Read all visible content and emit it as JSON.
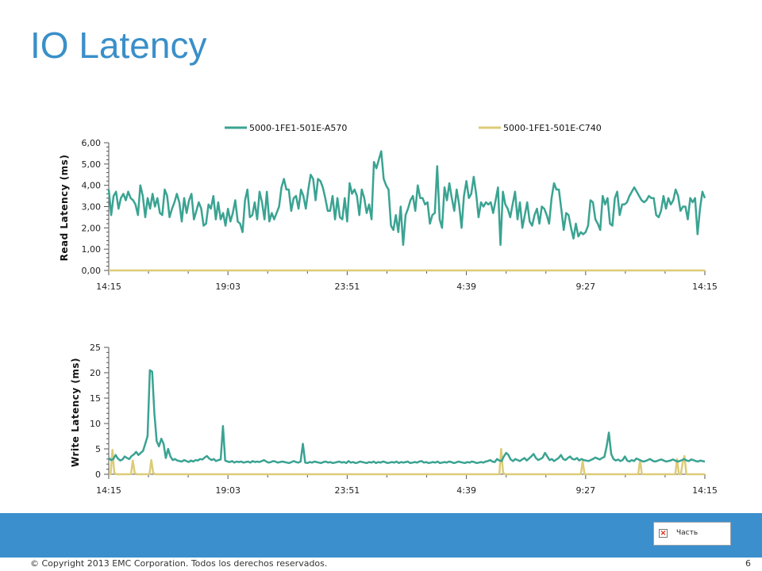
{
  "slide": {
    "title": "IO Latency",
    "copyright": "© Copyright 2013 EMC Corporation. Todos los derechos reservados.",
    "page_number": "6",
    "placeholder_label": "Часть"
  },
  "colors": {
    "series1": "#3aa392",
    "series2": "#dccb78",
    "title": "#3a8fc9",
    "footer": "#3b8fcd"
  },
  "chart_data": [
    {
      "type": "line",
      "legend_position": "top",
      "ylabel": "Read Latency (ms)",
      "ylim": [
        0,
        6
      ],
      "y_tick_labels": [
        "0,00",
        "1,00",
        "2,00",
        "3,00",
        "4,00",
        "5,00",
        "6,00"
      ],
      "x_tick_labels": [
        "14:15",
        "19:03",
        "23:51",
        "4:39",
        "9:27",
        "14:15"
      ],
      "series": [
        {
          "name": "5000-1FE1-501E-A570",
          "values": [
            3.8,
            2.6,
            3.5,
            3.7,
            2.9,
            3.4,
            3.6,
            3.3,
            3.7,
            3.4,
            3.3,
            3.1,
            2.6,
            4.0,
            3.5,
            2.5,
            3.4,
            2.9,
            3.6,
            3.0,
            3.4,
            2.7,
            2.6,
            3.8,
            3.5,
            2.5,
            2.9,
            3.2,
            3.6,
            3.2,
            2.3,
            3.4,
            2.7,
            3.3,
            3.6,
            2.4,
            2.8,
            3.2,
            2.9,
            2.1,
            2.2,
            3.1,
            2.9,
            3.5,
            2.4,
            3.2,
            2.4,
            2.7,
            2.1,
            2.9,
            2.3,
            2.7,
            3.3,
            2.3,
            2.2,
            1.8,
            3.3,
            3.8,
            2.5,
            2.6,
            3.2,
            2.4,
            3.7,
            3.2,
            2.4,
            3.7,
            2.3,
            2.7,
            2.4,
            2.7,
            3.0,
            3.9,
            4.3,
            3.8,
            3.8,
            2.8,
            3.4,
            3.5,
            2.9,
            3.8,
            3.5,
            2.9,
            3.8,
            4.5,
            4.3,
            3.3,
            4.3,
            4.2,
            3.9,
            3.4,
            2.8,
            2.8,
            3.5,
            2.4,
            3.4,
            2.5,
            2.4,
            3.4,
            2.3,
            4.1,
            3.6,
            3.8,
            3.5,
            2.6,
            3.8,
            3.4,
            2.7,
            3.1,
            2.4,
            5.1,
            4.8,
            5.2,
            5.6,
            4.3,
            4.0,
            3.8,
            2.1,
            1.9,
            2.6,
            1.8,
            3.0,
            1.2,
            2.6,
            2.9,
            3.3,
            3.5,
            2.8,
            4.0,
            3.4,
            3.4,
            3.1,
            3.2,
            2.2,
            2.6,
            2.7,
            4.9,
            2.4,
            2.0,
            3.9,
            3.3,
            4.1,
            3.4,
            2.8,
            3.8,
            3.1,
            2.0,
            3.5,
            4.2,
            3.4,
            3.6,
            4.4,
            3.6,
            2.5,
            3.2,
            3.0,
            3.2,
            3.1,
            3.2,
            2.7,
            3.3,
            3.9,
            1.2,
            3.7,
            3.1,
            2.9,
            2.5,
            3.1,
            3.7,
            2.4,
            3.2,
            2.0,
            2.6,
            3.2,
            2.3,
            2.1,
            2.6,
            2.9,
            2.2,
            3.0,
            2.9,
            2.6,
            2.2,
            3.4,
            4.1,
            3.8,
            3.8,
            2.9,
            1.9,
            2.7,
            2.6,
            2.0,
            1.5,
            2.2,
            1.6,
            1.8,
            1.7,
            1.8,
            2.1,
            3.3,
            3.2,
            2.4,
            2.2,
            1.9,
            3.5,
            3.1,
            3.4,
            2.2,
            2.1,
            3.4,
            3.7,
            2.6,
            3.1,
            3.1,
            3.2,
            3.5,
            3.7,
            3.9,
            3.7,
            3.5,
            3.3,
            3.2,
            3.3,
            3.5,
            3.4,
            3.4,
            2.6,
            2.5,
            2.8,
            3.5,
            2.9,
            3.4,
            3.1,
            3.3,
            3.8,
            3.5,
            2.8,
            3.0,
            3.0,
            2.4,
            3.4,
            3.2,
            3.4,
            1.7,
            2.9,
            3.7,
            3.4
          ]
        },
        {
          "name": "5000-1FE1-501E-C740",
          "values": [
            0,
            0
          ]
        }
      ]
    },
    {
      "type": "line",
      "ylabel": "Write Latency (ms)",
      "ylim": [
        0,
        25
      ],
      "y_tick_labels": [
        "0",
        "5",
        "10",
        "15",
        "20",
        "25"
      ],
      "x_tick_labels": [
        "14:15",
        "19:03",
        "23:51",
        "4:39",
        "9:27",
        "14:15"
      ],
      "series": [
        {
          "name": "5000-1FE1-501E-A570",
          "values": [
            3.2,
            2.8,
            3.0,
            3.8,
            3.1,
            2.7,
            2.9,
            3.5,
            3.2,
            3.0,
            3.6,
            3.9,
            4.4,
            3.8,
            4.2,
            4.6,
            6.0,
            7.5,
            20.5,
            20.2,
            12.0,
            6.5,
            5.5,
            7.0,
            6.0,
            3.2,
            5.0,
            3.5,
            2.8,
            3.0,
            2.7,
            2.6,
            2.5,
            2.8,
            2.6,
            2.4,
            2.7,
            2.5,
            2.8,
            2.7,
            3.0,
            2.9,
            3.3,
            3.6,
            3.1,
            2.8,
            3.0,
            2.6,
            2.8,
            2.9,
            9.5,
            2.7,
            2.5,
            2.4,
            2.6,
            2.3,
            2.5,
            2.4,
            2.5,
            2.3,
            2.4,
            2.5,
            2.3,
            2.6,
            2.4,
            2.5,
            2.4,
            2.6,
            2.8,
            2.5,
            2.3,
            2.4,
            2.6,
            2.5,
            2.3,
            2.4,
            2.5,
            2.4,
            2.3,
            2.2,
            2.4,
            2.6,
            2.4,
            2.3,
            2.5,
            6.0,
            2.3,
            2.2,
            2.4,
            2.3,
            2.5,
            2.4,
            2.3,
            2.2,
            2.4,
            2.5,
            2.3,
            2.4,
            2.2,
            2.3,
            2.4,
            2.5,
            2.3,
            2.4,
            2.2,
            2.6,
            2.3,
            2.4,
            2.2,
            2.3,
            2.5,
            2.4,
            2.3,
            2.2,
            2.4,
            2.3,
            2.5,
            2.2,
            2.4,
            2.3,
            2.5,
            2.4,
            2.2,
            2.3,
            2.4,
            2.3,
            2.5,
            2.2,
            2.4,
            2.3,
            2.4,
            2.5,
            2.2,
            2.3,
            2.4,
            2.3,
            2.5,
            2.6,
            2.3,
            2.4,
            2.2,
            2.3,
            2.4,
            2.3,
            2.5,
            2.2,
            2.3,
            2.4,
            2.3,
            2.5,
            2.4,
            2.2,
            2.3,
            2.5,
            2.4,
            2.3,
            2.2,
            2.4,
            2.3,
            2.5,
            2.4,
            2.2,
            2.3,
            2.4,
            2.3,
            2.5,
            2.6,
            2.8,
            2.5,
            2.4,
            3.0,
            2.7,
            2.6,
            3.5,
            4.2,
            3.8,
            2.9,
            2.6,
            3.0,
            2.8,
            2.6,
            2.9,
            3.2,
            2.7,
            3.1,
            3.5,
            4.0,
            3.2,
            2.8,
            3.0,
            3.3,
            4.2,
            3.5,
            2.8,
            3.0,
            2.6,
            2.9,
            3.2,
            3.8,
            3.0,
            2.8,
            3.2,
            3.5,
            3.0,
            2.9,
            3.2,
            2.7,
            3.0,
            2.8,
            2.7,
            2.6,
            2.8,
            3.0,
            3.3,
            3.1,
            2.9,
            3.2,
            3.4,
            5.5,
            8.2,
            4.0,
            3.0,
            2.7,
            2.9,
            2.6,
            2.8,
            3.5,
            2.7,
            2.5,
            2.8,
            2.6,
            3.1,
            2.9,
            2.7,
            2.5,
            2.6,
            2.8,
            3.0,
            2.7,
            2.5,
            2.6,
            2.8,
            2.9,
            2.7,
            2.5,
            2.6,
            2.7,
            2.9,
            2.7,
            2.5,
            2.6,
            2.8,
            3.0,
            2.7,
            2.6,
            2.9,
            2.8,
            2.6,
            2.5,
            2.7,
            2.6,
            2.5
          ]
        },
        {
          "name": "5000-1FE1-501E-C740",
          "values": [
            0,
            0,
            4.8,
            0.3,
            0,
            0,
            0,
            0,
            0,
            0,
            0,
            0,
            0,
            2.7,
            0.3,
            0,
            0,
            0,
            0,
            0,
            0,
            0,
            0,
            2.8,
            0.3,
            0,
            0,
            0,
            0,
            0,
            0,
            0,
            0,
            0,
            0,
            0,
            0,
            0,
            0,
            0,
            0,
            0,
            0,
            0,
            0,
            0,
            0,
            0,
            0,
            0,
            0,
            0,
            0,
            0,
            0,
            0,
            0,
            0,
            0,
            0,
            0,
            0,
            0,
            0,
            0,
            0,
            0,
            0,
            0,
            0,
            0,
            0,
            0,
            0,
            0,
            0,
            0,
            0,
            0,
            0,
            0,
            0,
            0,
            0,
            0,
            0,
            0,
            0,
            0,
            0,
            0,
            0,
            0,
            0,
            0,
            0,
            0,
            0,
            0,
            0,
            0,
            0,
            0,
            0,
            0,
            0,
            0,
            0,
            0,
            0,
            0,
            0,
            0,
            0,
            0,
            0,
            0,
            0,
            0,
            0,
            0,
            0,
            0,
            0,
            0,
            0,
            0,
            0,
            0,
            0,
            0,
            0,
            0,
            0,
            0,
            0,
            0,
            0,
            0,
            0,
            0,
            0,
            0,
            0,
            0,
            0,
            0,
            0,
            0,
            0,
            0,
            0,
            0,
            0,
            0,
            0,
            0,
            0,
            0,
            0,
            0,
            0,
            0,
            0,
            0,
            0,
            0,
            0,
            0,
            0,
            0,
            0,
            0,
            0,
            0,
            0,
            0,
            0,
            0,
            0,
            0,
            0,
            0,
            0,
            0,
            0,
            0,
            0,
            0,
            0,
            0,
            0,
            0,
            0,
            0,
            0,
            0,
            0,
            0,
            0,
            0,
            0,
            0,
            0,
            0,
            0,
            0,
            0,
            0,
            0,
            0,
            0,
            5.0,
            0.3,
            0,
            0,
            0,
            0,
            0,
            0,
            0,
            0,
            0,
            0,
            0,
            0,
            0,
            0,
            0,
            0,
            0,
            0,
            0,
            0,
            0,
            0,
            0,
            0,
            0,
            0,
            0,
            0,
            0,
            0,
            0,
            0,
            0,
            0,
            0,
            0,
            0,
            0,
            0,
            0,
            0,
            0,
            2.6,
            0,
            0,
            0,
            0,
            0,
            0,
            0,
            0,
            0,
            0,
            0,
            0,
            0,
            0,
            0,
            0,
            0,
            0,
            0,
            0,
            0,
            0,
            0,
            0,
            0,
            0,
            0,
            0,
            0,
            0,
            2.8,
            0,
            0,
            0,
            0,
            0,
            0,
            0,
            0,
            0,
            0,
            0,
            0,
            0,
            0,
            0,
            0,
            0,
            0,
            0,
            3.0,
            0,
            0,
            2.2,
            3.6,
            0,
            0,
            0,
            0,
            0,
            0,
            0,
            0,
            0,
            0,
            0
          ]
        }
      ]
    }
  ]
}
